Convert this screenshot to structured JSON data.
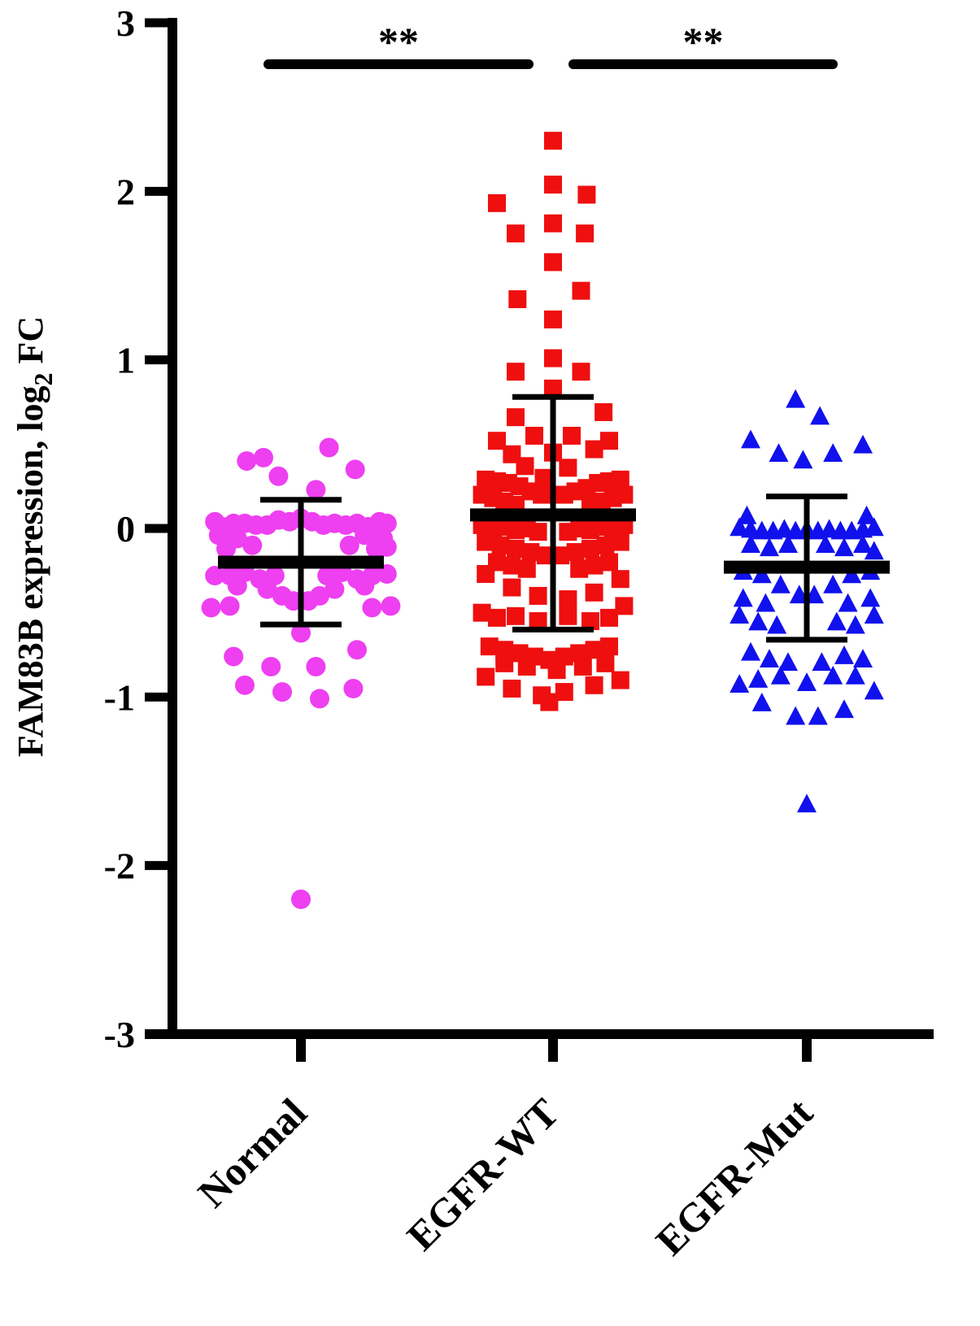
{
  "chart_data": {
    "type": "scatter",
    "title": "",
    "xlabel": "",
    "ylabel": {
      "main": "FAM83B expression, log",
      "subscript": "2",
      "suffix": " FC"
    },
    "ylim": [
      -3,
      3
    ],
    "yticks": [
      {
        "value": 3,
        "label": "3"
      },
      {
        "value": 2,
        "label": "2"
      },
      {
        "value": 1,
        "label": "1"
      },
      {
        "value": 0,
        "label": "0"
      },
      {
        "value": -1,
        "label": "-1"
      },
      {
        "value": -2,
        "label": "-2"
      },
      {
        "value": -3,
        "label": "-3"
      }
    ],
    "categories": [
      "Normal",
      "EGFR-WT",
      "EGFR-Mut"
    ],
    "grid": false,
    "legend": "none",
    "series": [
      {
        "category": "Normal",
        "marker": "circle",
        "color": "#ee3ff0",
        "mean": -0.2,
        "sd_upper": 0.17,
        "sd_lower": -0.57,
        "points": [
          [
            -0.29,
            0.4
          ],
          [
            -0.2,
            0.42
          ],
          [
            0.15,
            0.48
          ],
          [
            0.29,
            0.35
          ],
          [
            -0.12,
            0.31
          ],
          [
            0.08,
            0.23
          ],
          [
            -0.46,
            0.04
          ],
          [
            -0.42,
            0.01
          ],
          [
            -0.36,
            0.03
          ],
          [
            -0.3,
            0.03
          ],
          [
            -0.24,
            0.02
          ],
          [
            -0.18,
            0.02
          ],
          [
            -0.12,
            0.05
          ],
          [
            -0.06,
            0.04
          ],
          [
            0.0,
            0.06
          ],
          [
            0.06,
            0.04
          ],
          [
            0.12,
            0.02
          ],
          [
            0.18,
            0.03
          ],
          [
            0.24,
            0.02
          ],
          [
            0.3,
            0.03
          ],
          [
            0.36,
            0.01
          ],
          [
            0.42,
            0.04
          ],
          [
            0.46,
            0.03
          ],
          [
            -0.44,
            -0.04
          ],
          [
            -0.34,
            -0.06
          ],
          [
            0.34,
            -0.04
          ],
          [
            0.44,
            -0.06
          ],
          [
            0.26,
            -0.1
          ],
          [
            -0.26,
            -0.1
          ],
          [
            0.4,
            -0.12
          ],
          [
            -0.4,
            -0.12
          ],
          [
            0.46,
            -0.11
          ],
          [
            -0.46,
            -0.28
          ],
          [
            -0.38,
            -0.28
          ],
          [
            -0.3,
            -0.26
          ],
          [
            -0.22,
            -0.3
          ],
          [
            -0.14,
            -0.28
          ],
          [
            0.14,
            -0.28
          ],
          [
            0.22,
            -0.26
          ],
          [
            0.3,
            -0.3
          ],
          [
            0.38,
            -0.28
          ],
          [
            0.46,
            -0.27
          ],
          [
            -0.34,
            -0.34
          ],
          [
            -0.18,
            -0.36
          ],
          [
            0.18,
            -0.36
          ],
          [
            0.34,
            -0.34
          ],
          [
            -0.1,
            -0.4
          ],
          [
            0.1,
            -0.4
          ],
          [
            -0.04,
            -0.43
          ],
          [
            0.04,
            -0.43
          ],
          [
            -0.48,
            -0.47
          ],
          [
            -0.38,
            -0.46
          ],
          [
            0.38,
            -0.47
          ],
          [
            0.48,
            -0.46
          ],
          [
            0.0,
            -0.62
          ],
          [
            -0.36,
            -0.76
          ],
          [
            0.3,
            -0.72
          ],
          [
            -0.16,
            -0.82
          ],
          [
            0.08,
            -0.82
          ],
          [
            -0.3,
            -0.93
          ],
          [
            0.28,
            -0.95
          ],
          [
            -0.1,
            -0.97
          ],
          [
            0.1,
            -1.01
          ],
          [
            0.0,
            -2.2
          ]
        ]
      },
      {
        "category": "EGFR-WT",
        "marker": "square",
        "color": "#ef0f0f",
        "mean": 0.08,
        "sd_upper": 0.78,
        "sd_lower": -0.6,
        "points": [
          [
            0.0,
            2.3
          ],
          [
            0.0,
            2.04
          ],
          [
            -0.3,
            1.93
          ],
          [
            0.18,
            1.98
          ],
          [
            0.0,
            1.81
          ],
          [
            -0.2,
            1.75
          ],
          [
            0.17,
            1.75
          ],
          [
            0.0,
            1.58
          ],
          [
            0.15,
            1.41
          ],
          [
            -0.19,
            1.36
          ],
          [
            0.0,
            1.24
          ],
          [
            0.0,
            1.01
          ],
          [
            -0.2,
            0.93
          ],
          [
            0.15,
            0.93
          ],
          [
            0.0,
            0.83
          ],
          [
            -0.2,
            0.66
          ],
          [
            0.27,
            0.69
          ],
          [
            -0.3,
            0.52
          ],
          [
            0.3,
            0.52
          ],
          [
            -0.1,
            0.55
          ],
          [
            0.1,
            0.55
          ],
          [
            -0.22,
            0.44
          ],
          [
            0.22,
            0.47
          ],
          [
            0.0,
            0.45
          ],
          [
            -0.15,
            0.37
          ],
          [
            0.08,
            0.36
          ],
          [
            -0.05,
            0.3
          ],
          [
            -0.36,
            0.29
          ],
          [
            -0.3,
            0.28
          ],
          [
            -0.24,
            0.27
          ],
          [
            -0.18,
            0.25
          ],
          [
            -0.12,
            0.22
          ],
          [
            -0.06,
            0.2
          ],
          [
            0.06,
            0.2
          ],
          [
            0.12,
            0.22
          ],
          [
            0.18,
            0.24
          ],
          [
            0.24,
            0.27
          ],
          [
            0.3,
            0.28
          ],
          [
            0.36,
            0.29
          ],
          [
            -0.38,
            0.2
          ],
          [
            -0.32,
            0.18
          ],
          [
            -0.26,
            0.16
          ],
          [
            -0.2,
            0.14
          ],
          [
            0.2,
            0.14
          ],
          [
            0.26,
            0.16
          ],
          [
            0.32,
            0.18
          ],
          [
            0.38,
            0.2
          ],
          [
            -0.38,
            0.02
          ],
          [
            -0.32,
            0.0
          ],
          [
            -0.26,
            0.01
          ],
          [
            -0.2,
            -0.01
          ],
          [
            -0.14,
            0.0
          ],
          [
            -0.08,
            -0.02
          ],
          [
            0.08,
            -0.02
          ],
          [
            0.14,
            0.0
          ],
          [
            0.2,
            -0.01
          ],
          [
            0.26,
            0.01
          ],
          [
            0.32,
            0.0
          ],
          [
            0.38,
            0.02
          ],
          [
            -0.36,
            -0.08
          ],
          [
            -0.28,
            -0.1
          ],
          [
            -0.2,
            -0.12
          ],
          [
            -0.12,
            -0.14
          ],
          [
            -0.04,
            -0.16
          ],
          [
            0.04,
            -0.16
          ],
          [
            0.12,
            -0.14
          ],
          [
            0.2,
            -0.12
          ],
          [
            0.28,
            -0.1
          ],
          [
            0.36,
            -0.08
          ],
          [
            -0.3,
            -0.2
          ],
          [
            -0.22,
            -0.22
          ],
          [
            -0.14,
            -0.24
          ],
          [
            0.14,
            -0.24
          ],
          [
            0.22,
            -0.22
          ],
          [
            0.3,
            -0.2
          ],
          [
            -0.36,
            -0.27
          ],
          [
            0.36,
            -0.3
          ],
          [
            -0.22,
            -0.35
          ],
          [
            0.22,
            -0.38
          ],
          [
            -0.08,
            -0.4
          ],
          [
            0.08,
            -0.42
          ],
          [
            -0.38,
            -0.5
          ],
          [
            -0.3,
            -0.53
          ],
          [
            -0.2,
            -0.52
          ],
          [
            -0.08,
            -0.55
          ],
          [
            0.08,
            -0.52
          ],
          [
            0.2,
            -0.55
          ],
          [
            0.3,
            -0.53
          ],
          [
            0.38,
            -0.46
          ],
          [
            -0.34,
            -0.7
          ],
          [
            -0.26,
            -0.72
          ],
          [
            -0.18,
            -0.74
          ],
          [
            -0.1,
            -0.76
          ],
          [
            -0.02,
            -0.78
          ],
          [
            0.06,
            -0.76
          ],
          [
            0.14,
            -0.74
          ],
          [
            0.22,
            -0.72
          ],
          [
            0.3,
            -0.7
          ],
          [
            -0.26,
            -0.8
          ],
          [
            -0.14,
            -0.82
          ],
          [
            0.02,
            -0.84
          ],
          [
            0.16,
            -0.82
          ],
          [
            0.28,
            -0.8
          ],
          [
            -0.36,
            -0.88
          ],
          [
            0.36,
            -0.9
          ],
          [
            -0.22,
            -0.95
          ],
          [
            0.22,
            -0.93
          ],
          [
            -0.06,
            -0.99
          ],
          [
            0.06,
            -0.97
          ],
          [
            -0.02,
            -1.03
          ]
        ]
      },
      {
        "category": "EGFR-Mut",
        "marker": "triangle",
        "color": "#1111ee",
        "mean": -0.23,
        "sd_upper": 0.19,
        "sd_lower": -0.66,
        "points": [
          [
            -0.06,
            0.76
          ],
          [
            0.07,
            0.66
          ],
          [
            -0.3,
            0.52
          ],
          [
            0.3,
            0.49
          ],
          [
            -0.15,
            0.44
          ],
          [
            0.14,
            0.44
          ],
          [
            -0.02,
            0.4
          ],
          [
            -0.32,
            0.07
          ],
          [
            0.32,
            0.07
          ],
          [
            -0.36,
            0.0
          ],
          [
            -0.3,
            -0.01
          ],
          [
            -0.24,
            -0.02
          ],
          [
            -0.18,
            -0.02
          ],
          [
            -0.12,
            -0.01
          ],
          [
            -0.06,
            -0.02
          ],
          [
            0.0,
            -0.01
          ],
          [
            0.06,
            -0.02
          ],
          [
            0.12,
            -0.01
          ],
          [
            0.18,
            -0.02
          ],
          [
            0.24,
            -0.02
          ],
          [
            0.3,
            -0.01
          ],
          [
            0.36,
            0.0
          ],
          [
            -0.3,
            -0.1
          ],
          [
            -0.2,
            -0.12
          ],
          [
            -0.1,
            -0.1
          ],
          [
            0.1,
            -0.1
          ],
          [
            0.2,
            -0.12
          ],
          [
            0.3,
            -0.1
          ],
          [
            0.36,
            -0.14
          ],
          [
            -0.34,
            -0.26
          ],
          [
            -0.24,
            -0.28
          ],
          [
            0.24,
            -0.28
          ],
          [
            0.34,
            -0.26
          ],
          [
            -0.14,
            -0.34
          ],
          [
            0.14,
            -0.34
          ],
          [
            -0.04,
            -0.4
          ],
          [
            0.04,
            -0.4
          ],
          [
            -0.34,
            -0.42
          ],
          [
            0.34,
            -0.42
          ],
          [
            -0.22,
            -0.45
          ],
          [
            0.22,
            -0.45
          ],
          [
            -0.36,
            -0.52
          ],
          [
            -0.26,
            -0.56
          ],
          [
            -0.16,
            -0.58
          ],
          [
            0.16,
            -0.56
          ],
          [
            0.26,
            -0.58
          ],
          [
            0.36,
            -0.52
          ],
          [
            -0.3,
            -0.74
          ],
          [
            -0.2,
            -0.78
          ],
          [
            -0.1,
            -0.8
          ],
          [
            0.08,
            -0.8
          ],
          [
            0.2,
            -0.76
          ],
          [
            0.3,
            -0.78
          ],
          [
            -0.36,
            -0.93
          ],
          [
            -0.26,
            -0.9
          ],
          [
            -0.14,
            -0.88
          ],
          [
            0.0,
            -0.92
          ],
          [
            0.14,
            -0.88
          ],
          [
            0.26,
            -0.88
          ],
          [
            0.36,
            -0.97
          ],
          [
            -0.24,
            -1.04
          ],
          [
            -0.06,
            -1.12
          ],
          [
            0.06,
            -1.12
          ],
          [
            0.2,
            -1.08
          ],
          [
            0.0,
            -1.64
          ]
        ]
      }
    ],
    "significance": [
      {
        "from": "Normal",
        "to": "EGFR-WT",
        "label": "**"
      },
      {
        "from": "EGFR-WT",
        "to": "EGFR-Mut",
        "label": "**"
      }
    ]
  }
}
